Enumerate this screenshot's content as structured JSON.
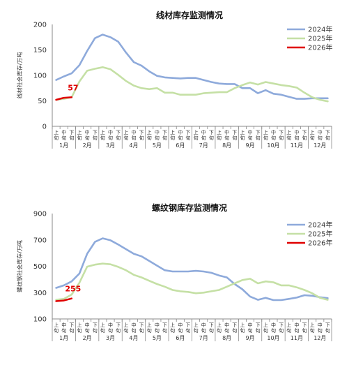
{
  "chart_data": [
    {
      "type": "line",
      "title": "线材库存监测情况",
      "ylabel": "线材社会库存/万吨",
      "ylim": [
        0,
        200
      ],
      "yticks": [
        0,
        50,
        100,
        150,
        200
      ],
      "xlabels": [
        "上旬",
        "中旬",
        "下旬",
        "上旬",
        "中旬",
        "下旬",
        "上旬",
        "中旬",
        "下旬",
        "上旬",
        "中旬",
        "下旬",
        "上旬",
        "中旬",
        "下旬",
        "上旬",
        "中旬",
        "下旬",
        "上旬",
        "中旬",
        "下旬",
        "上旬",
        "中旬",
        "下旬",
        "上旬",
        "中旬",
        "下旬",
        "上旬",
        "中旬",
        "下旬",
        "上旬",
        "中旬",
        "下旬",
        "上旬",
        "中旬",
        "下旬"
      ],
      "months": [
        "1月",
        "2月",
        "3月",
        "4月",
        "5月",
        "6月",
        "7月",
        "8月",
        "9月",
        "10月",
        "11月",
        "12月"
      ],
      "legend_position": "top-right",
      "series": [
        {
          "name": "2024年",
          "color": "#8eaadb",
          "values": [
            91,
            98,
            104,
            120,
            148,
            173,
            180,
            175,
            166,
            145,
            126,
            119,
            108,
            99,
            96,
            95,
            94,
            95,
            95,
            91,
            87,
            84,
            83,
            83,
            75,
            75,
            65,
            71,
            64,
            62,
            58,
            54,
            54,
            55,
            55,
            55
          ]
        },
        {
          "name": "2025年",
          "color": "#c5e0a5",
          "values": [
            52,
            54,
            57,
            88,
            109,
            113,
            116,
            112,
            101,
            89,
            80,
            75,
            73,
            75,
            66,
            66,
            62,
            62,
            62,
            65,
            66,
            67,
            67,
            75,
            81,
            86,
            82,
            87,
            84,
            81,
            79,
            76,
            66,
            57,
            52,
            49
          ]
        },
        {
          "name": "2026年",
          "color": "#e00000",
          "values": [
            52,
            56,
            57
          ]
        }
      ],
      "data_labels": [
        {
          "series": "2026年",
          "index": 2,
          "text": "57"
        }
      ]
    },
    {
      "type": "line",
      "title": "螺纹钢库存监测情况",
      "ylabel": "螺纹钢社会库存/万吨",
      "ylim": [
        100,
        900
      ],
      "yticks": [
        100,
        300,
        500,
        700,
        900
      ],
      "xlabels": [
        "上旬",
        "中旬",
        "下旬",
        "上旬",
        "中旬",
        "下旬",
        "上旬",
        "中旬",
        "下旬",
        "上旬",
        "中旬",
        "下旬",
        "上旬",
        "中旬",
        "下旬",
        "上旬",
        "中旬",
        "下旬",
        "上旬",
        "中旬",
        "下旬",
        "上旬",
        "中旬",
        "下旬",
        "上旬",
        "中旬",
        "下旬",
        "上旬",
        "中旬",
        "下旬",
        "上旬",
        "中旬",
        "下旬",
        "上旬",
        "中旬",
        "下旬"
      ],
      "months": [
        "1月",
        "2月",
        "3月",
        "4月",
        "5月",
        "6月",
        "7月",
        "8月",
        "9月",
        "10月",
        "11月",
        "12月"
      ],
      "legend_position": "top-right",
      "series": [
        {
          "name": "2024年",
          "color": "#8eaadb",
          "values": [
            336,
            355,
            385,
            445,
            595,
            685,
            712,
            697,
            665,
            630,
            595,
            575,
            540,
            505,
            470,
            460,
            460,
            460,
            465,
            460,
            450,
            430,
            415,
            365,
            325,
            270,
            245,
            260,
            243,
            243,
            252,
            262,
            280,
            276,
            265,
            258
          ]
        },
        {
          "name": "2025年",
          "color": "#c5e0a5",
          "values": [
            245,
            252,
            285,
            375,
            497,
            512,
            520,
            515,
            495,
            470,
            435,
            415,
            390,
            365,
            345,
            320,
            310,
            305,
            295,
            300,
            310,
            320,
            345,
            370,
            395,
            405,
            370,
            385,
            378,
            355,
            355,
            340,
            320,
            295,
            260,
            245
          ]
        },
        {
          "name": "2026年",
          "color": "#e00000",
          "values": [
            235,
            240,
            255
          ]
        }
      ],
      "data_labels": [
        {
          "series": "2026年",
          "index": 2,
          "text": "255"
        }
      ]
    }
  ]
}
